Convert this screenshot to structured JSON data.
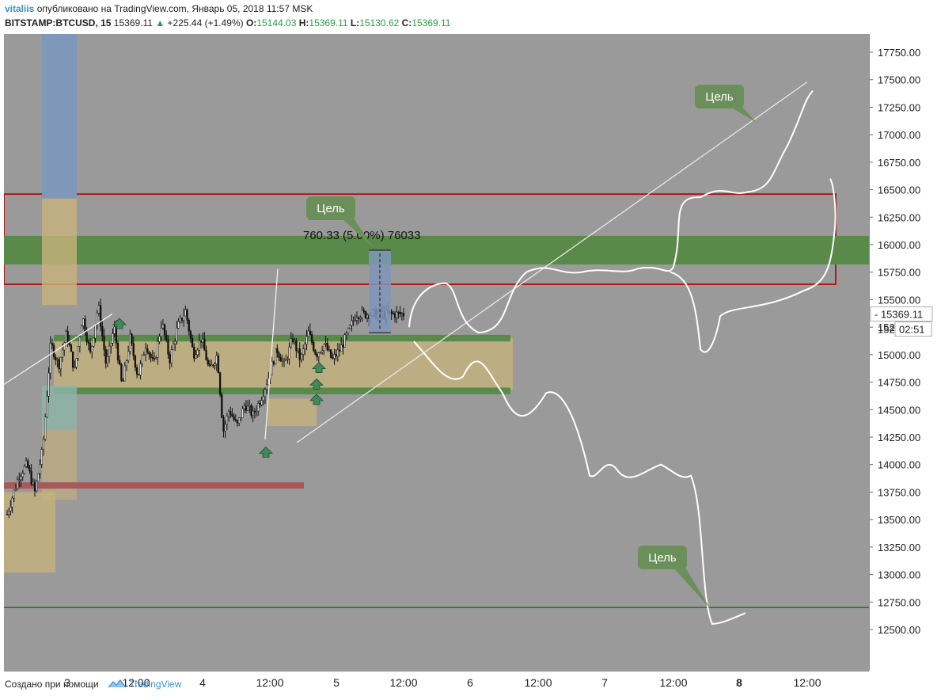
{
  "header": {
    "author": "vitaliis",
    "published_text": "опубликовано на TradingView.com, Январь 05, 2018 11:57 MSK",
    "symbol": "BITSTAMP:BTCUSD, 15",
    "last": "15369.11",
    "change": "+225.44 (+1.49%)",
    "o_label": "O:",
    "o_value": "15144.03",
    "h_label": "H:",
    "h_value": "15369.11",
    "l_label": "L:",
    "l_value": "15130.62",
    "c_label": "C:",
    "c_value": "15369.11"
  },
  "footer": {
    "created_with": "Создано при помощи",
    "brand": "TradingView"
  },
  "colors": {
    "chart_bg": "#9a9a9a",
    "green_zone": "#5a8a4a",
    "tan_zone": "#c8b37a",
    "red_box": "#b01818",
    "label_bg": "#6b8f5a",
    "drawing": "#ffffff",
    "candle": "#111111"
  },
  "price_label": {
    "value": "15369.11",
    "countdown": "02:51",
    "hidden_prefix": "152"
  },
  "annotations": {
    "target_label": "Цель",
    "measure_text": "760.33 (5.00%) 76033"
  },
  "chart_data": {
    "type": "candlestick",
    "title": "",
    "ylim": [
      12400,
      17900
    ],
    "y_ticks": [
      12500,
      12750,
      13000,
      13250,
      13500,
      13750,
      14000,
      14250,
      14500,
      14750,
      15000,
      15250,
      15500,
      15750,
      16000,
      16250,
      16500,
      16750,
      17000,
      17250,
      17500,
      17750
    ],
    "y_tick_labels": [
      "12500.00",
      "12750.00",
      "13000.00",
      "13250.00",
      "13500.00",
      "13750.00",
      "14000.00",
      "14250.00",
      "14500.00",
      "14750.00",
      "15000.00",
      "15250.00",
      "15500.00",
      "15750.00",
      "16000.00",
      "16250.00",
      "16500.00",
      "16750.00",
      "17000.00",
      "17250.00",
      "17500.00",
      "17750.00"
    ],
    "x_tick_labels": [
      "3",
      "12:00",
      "4",
      "12:00",
      "5",
      "12:00",
      "6",
      "12:00",
      "7",
      "12:00",
      "8",
      "12:00"
    ],
    "x_tick_bold": [
      false,
      false,
      false,
      false,
      false,
      false,
      false,
      false,
      false,
      false,
      true,
      false
    ],
    "price_path": [
      [
        0,
        13550
      ],
      [
        0.03,
        13900
      ],
      [
        0.05,
        14000
      ],
      [
        0.07,
        13750
      ],
      [
        0.09,
        14150
      ],
      [
        0.11,
        15100
      ],
      [
        0.13,
        14900
      ],
      [
        0.15,
        15200
      ],
      [
        0.17,
        14850
      ],
      [
        0.19,
        15350
      ],
      [
        0.21,
        15000
      ],
      [
        0.23,
        15450
      ],
      [
        0.25,
        14900
      ],
      [
        0.27,
        15250
      ],
      [
        0.29,
        14700
      ],
      [
        0.31,
        15150
      ],
      [
        0.33,
        14800
      ],
      [
        0.35,
        15100
      ],
      [
        0.37,
        14900
      ],
      [
        0.39,
        15300
      ],
      [
        0.41,
        14950
      ],
      [
        0.43,
        15250
      ],
      [
        0.45,
        15400
      ],
      [
        0.47,
        15000
      ],
      [
        0.49,
        15150
      ],
      [
        0.51,
        14850
      ],
      [
        0.53,
        15000
      ],
      [
        0.545,
        14300
      ],
      [
        0.56,
        14500
      ],
      [
        0.58,
        14350
      ],
      [
        0.6,
        14550
      ],
      [
        0.62,
        14450
      ],
      [
        0.64,
        14600
      ],
      [
        0.66,
        14800
      ],
      [
        0.68,
        15050
      ],
      [
        0.7,
        14900
      ],
      [
        0.72,
        15150
      ],
      [
        0.74,
        14950
      ],
      [
        0.76,
        15200
      ],
      [
        0.78,
        15000
      ],
      [
        0.8,
        15100
      ],
      [
        0.82,
        14950
      ],
      [
        0.84,
        15050
      ],
      [
        0.86,
        15200
      ],
      [
        0.88,
        15369
      ]
    ],
    "zones": {
      "green_band": [
        15820,
        16080
      ],
      "red_box": [
        15640,
        16460
      ],
      "range_top": [
        15120,
        15180
      ],
      "range_bottom": [
        14640,
        14700
      ],
      "support_line": 12700,
      "red_level": 13810
    }
  }
}
